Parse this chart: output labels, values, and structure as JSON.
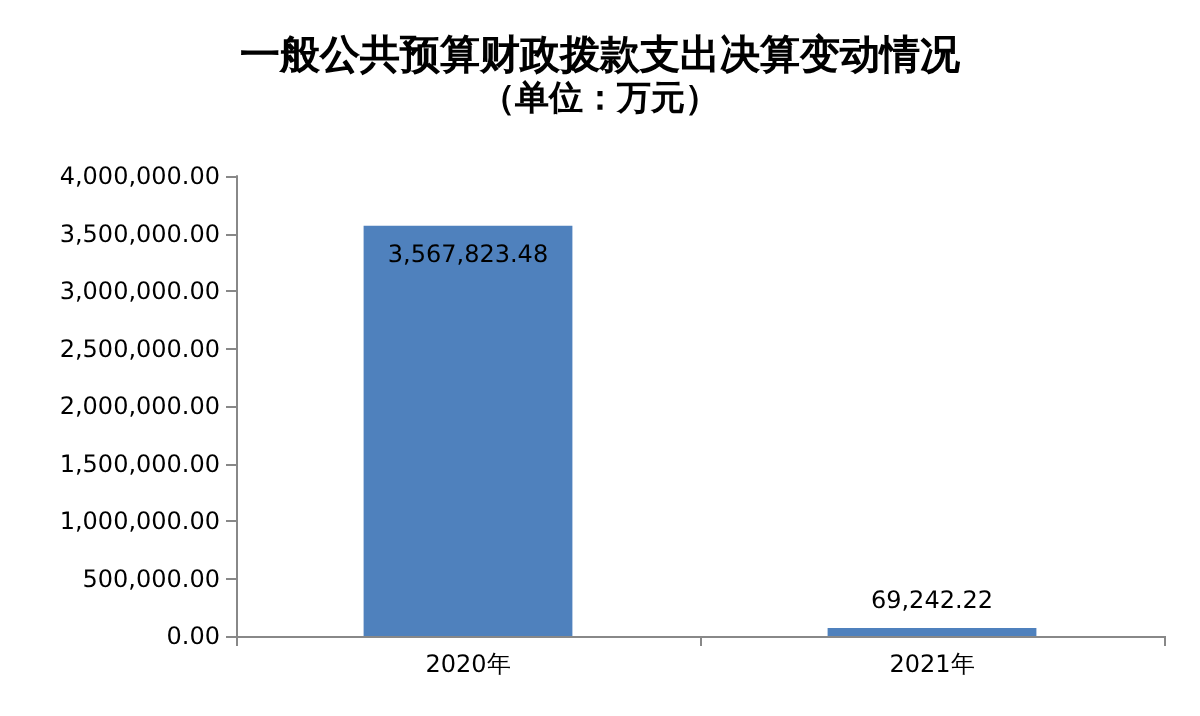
{
  "chart_data": {
    "type": "bar",
    "title": "一般公共预算财政拨款支出决算变动情况",
    "subtitle": "（单位：万元）",
    "categories": [
      "2020年",
      "2021年"
    ],
    "values": [
      3567823.48,
      69242.22
    ],
    "value_labels": [
      "3,567,823.48",
      "69,242.22"
    ],
    "color": "#4f81bd",
    "ylim": [
      0,
      4000000
    ],
    "yticks": [
      {
        "value": 0,
        "label": "0.00"
      },
      {
        "value": 500000,
        "label": "500,000.00"
      },
      {
        "value": 1000000,
        "label": "1,000,000.00"
      },
      {
        "value": 1500000,
        "label": "1,500,000.00"
      },
      {
        "value": 2000000,
        "label": "2,000,000.00"
      },
      {
        "value": 2500000,
        "label": "2,500,000.00"
      },
      {
        "value": 3000000,
        "label": "3,000,000.00"
      },
      {
        "value": 3500000,
        "label": "3,500,000.00"
      },
      {
        "value": 4000000,
        "label": "4,000,000.00"
      }
    ],
    "grid": false
  }
}
